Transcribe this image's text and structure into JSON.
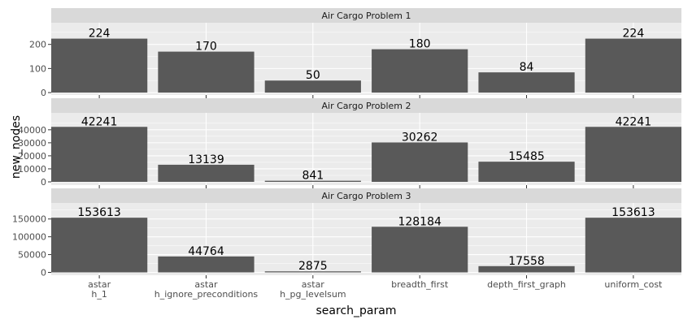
{
  "chart_data": {
    "type": "bar",
    "xlabel": "search_param",
    "ylabel": "new_nodes",
    "categories": [
      [
        "astar",
        "h_1"
      ],
      [
        "astar",
        "h_ignore_preconditions"
      ],
      [
        "astar",
        "h_pg_levelsum"
      ],
      [
        "breadth_first"
      ],
      [
        "depth_first_graph"
      ],
      [
        "uniform_cost"
      ]
    ],
    "facets": [
      {
        "title": "Air Cargo Problem 1",
        "values": [
          224,
          170,
          50,
          180,
          84,
          224
        ],
        "ylim": [
          -10,
          290
        ],
        "yticks": [
          0,
          100,
          200
        ],
        "ytick_labels": [
          "0",
          "100",
          "200"
        ]
      },
      {
        "title": "Air Cargo Problem 2",
        "values": [
          42241,
          13139,
          841,
          30262,
          15485,
          42241
        ],
        "ylim": [
          -2500,
          53000
        ],
        "yticks": [
          0,
          10000,
          20000,
          30000,
          40000
        ],
        "ytick_labels": [
          "0",
          "10000",
          "20000",
          "30000",
          "40000"
        ]
      },
      {
        "title": "Air Cargo Problem 3",
        "values": [
          153613,
          44764,
          2875,
          128184,
          17558,
          153613
        ],
        "ylim": [
          -8000,
          195000
        ],
        "yticks": [
          0,
          50000,
          100000,
          150000
        ],
        "ytick_labels": [
          "0",
          "50000",
          "100000",
          "150000"
        ]
      }
    ],
    "grid": true,
    "bar_color": "#595959",
    "panel_bg": "#ebebeb",
    "strip_bg": "#d9d9d9",
    "grid_color": "#ffffff"
  }
}
